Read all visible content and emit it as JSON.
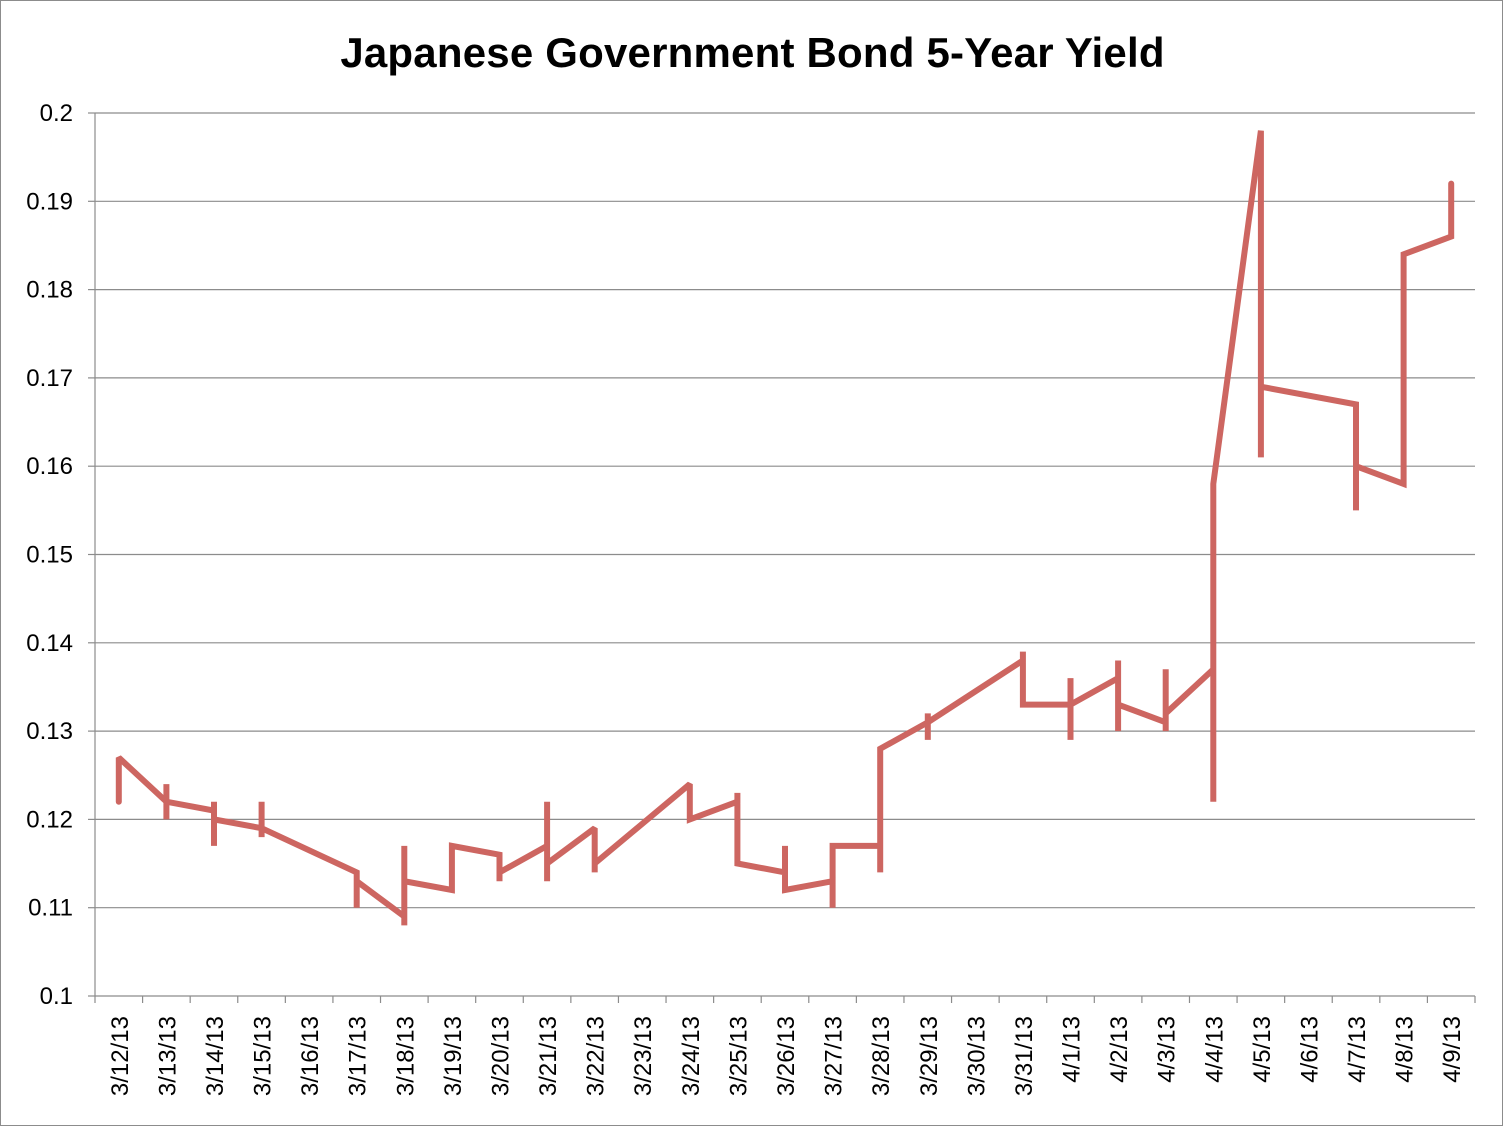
{
  "chart_data": {
    "type": "line",
    "title": "Japanese Government Bond 5-Year Yield",
    "xlabel": "",
    "ylabel": "",
    "ylim": [
      0.1,
      0.2
    ],
    "y_ticks": [
      "0.1",
      "0.11",
      "0.12",
      "0.13",
      "0.14",
      "0.15",
      "0.16",
      "0.17",
      "0.18",
      "0.19",
      "0.2"
    ],
    "categories": [
      "3/12/13",
      "3/13/13",
      "3/14/13",
      "3/15/13",
      "3/16/13",
      "3/17/13",
      "3/18/13",
      "3/19/13",
      "3/20/13",
      "3/21/13",
      "3/22/13",
      "3/23/13",
      "3/24/13",
      "3/25/13",
      "3/26/13",
      "3/27/13",
      "3/28/13",
      "3/29/13",
      "3/30/13",
      "3/31/13",
      "4/1/13",
      "4/2/13",
      "4/3/13",
      "4/4/13",
      "4/5/13",
      "4/6/13",
      "4/7/13",
      "4/8/13",
      "4/9/13"
    ],
    "grid": true,
    "legend": "none",
    "line_color": "#cd6661",
    "series": [
      {
        "values": [
          [
            0.0,
            0.122
          ],
          [
            0.0,
            0.127
          ],
          [
            1.0,
            0.122
          ],
          [
            1.0,
            0.124
          ],
          [
            1.0,
            0.12
          ],
          [
            1.0,
            0.122
          ],
          [
            2.0,
            0.121
          ],
          [
            2.0,
            0.122
          ],
          [
            2.0,
            0.117
          ],
          [
            2.0,
            0.12
          ],
          [
            3.0,
            0.119
          ],
          [
            3.0,
            0.122
          ],
          [
            3.0,
            0.118
          ],
          [
            3.0,
            0.119
          ],
          [
            5.0,
            0.114
          ],
          [
            5.0,
            0.11
          ],
          [
            5.0,
            0.113
          ],
          [
            6.0,
            0.109
          ],
          [
            6.0,
            0.108
          ],
          [
            6.0,
            0.117
          ],
          [
            6.0,
            0.113
          ],
          [
            7.0,
            0.112
          ],
          [
            7.0,
            0.117
          ],
          [
            8.0,
            0.116
          ],
          [
            8.0,
            0.113
          ],
          [
            8.0,
            0.114
          ],
          [
            9.0,
            0.117
          ],
          [
            9.0,
            0.122
          ],
          [
            9.0,
            0.113
          ],
          [
            9.0,
            0.115
          ],
          [
            10.0,
            0.119
          ],
          [
            10.0,
            0.114
          ],
          [
            10.0,
            0.115
          ],
          [
            12.0,
            0.124
          ],
          [
            12.0,
            0.12
          ],
          [
            13.0,
            0.122
          ],
          [
            13.0,
            0.123
          ],
          [
            13.0,
            0.115
          ],
          [
            14.0,
            0.114
          ],
          [
            14.0,
            0.117
          ],
          [
            14.0,
            0.112
          ],
          [
            15.0,
            0.113
          ],
          [
            15.0,
            0.11
          ],
          [
            15.0,
            0.117
          ],
          [
            16.0,
            0.117
          ],
          [
            16.0,
            0.114
          ],
          [
            16.0,
            0.128
          ],
          [
            17.0,
            0.131
          ],
          [
            17.0,
            0.129
          ],
          [
            17.0,
            0.132
          ],
          [
            17.0,
            0.131
          ],
          [
            19.0,
            0.138
          ],
          [
            19.0,
            0.139
          ],
          [
            19.0,
            0.133
          ],
          [
            20.0,
            0.133
          ],
          [
            20.0,
            0.136
          ],
          [
            20.0,
            0.129
          ],
          [
            20.0,
            0.133
          ],
          [
            21.0,
            0.136
          ],
          [
            21.0,
            0.138
          ],
          [
            21.0,
            0.13
          ],
          [
            21.0,
            0.133
          ],
          [
            22.0,
            0.131
          ],
          [
            22.0,
            0.137
          ],
          [
            22.0,
            0.13
          ],
          [
            22.0,
            0.132
          ],
          [
            23.0,
            0.137
          ],
          [
            23.0,
            0.122
          ],
          [
            23.0,
            0.158
          ],
          [
            24.0,
            0.198
          ],
          [
            24.0,
            0.161
          ],
          [
            24.0,
            0.169
          ],
          [
            26.0,
            0.167
          ],
          [
            26.0,
            0.155
          ],
          [
            26.0,
            0.16
          ],
          [
            27.0,
            0.158
          ],
          [
            27.0,
            0.184
          ],
          [
            28.0,
            0.186
          ],
          [
            28.0,
            0.192
          ]
        ]
      }
    ]
  }
}
